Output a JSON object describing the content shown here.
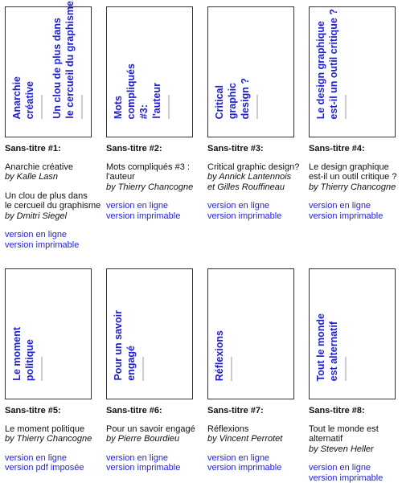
{
  "items": [
    {
      "cover": [
        [
          "Anarchie",
          "créative"
        ],
        [
          "Un clou de plus dans",
          "le cercueil du graphisme"
        ]
      ],
      "label": "Sans-titre #1:",
      "works": [
        {
          "lines": [
            "Anarchie créative"
          ],
          "author": "by Kalle Lasn"
        },
        {
          "lines": [
            "Un clou de plus dans",
            "le cercueil du graphisme"
          ],
          "author": "by Dmitri Siegel"
        }
      ],
      "links": [
        "version en ligne",
        "version imprimable"
      ]
    },
    {
      "cover": [
        [
          "Mots",
          "compliqués",
          "#3:",
          "l'auteur"
        ]
      ],
      "label": "Sans-titre #2:",
      "works": [
        {
          "lines": [
            "Mots compliqués #3 :",
            "l'auteur"
          ],
          "author": "by Thierry Chancogne"
        }
      ],
      "links": [
        "version en ligne",
        "version imprimable"
      ]
    },
    {
      "cover": [
        [
          "Critical",
          "graphic",
          "design ?"
        ]
      ],
      "label": "Sans-titre #3:",
      "works": [
        {
          "lines": [
            "Critical graphic design?"
          ],
          "author": "by Annick Lantennois",
          "author2": "et Gilles Rouffineau"
        }
      ],
      "links": [
        "version en ligne",
        "version imprimable"
      ]
    },
    {
      "cover": [
        [
          "Le design graphique",
          "est-il un outil critique ?"
        ]
      ],
      "label": "Sans-titre #4:",
      "works": [
        {
          "lines": [
            "Le design graphique",
            "est-il un outil critique ?"
          ],
          "author": "by Thierry Chancogne"
        }
      ],
      "links": [
        "version en ligne",
        "version imprimable"
      ]
    },
    {
      "cover": [
        [
          "Le moment",
          "politique"
        ]
      ],
      "label": "Sans-titre #5:",
      "works": [
        {
          "lines": [
            "Le moment politique"
          ],
          "author": "by Thierry Chancogne"
        }
      ],
      "links": [
        "version en ligne",
        "version pdf imposée"
      ]
    },
    {
      "cover": [
        [
          "Pour un savoir",
          "engagé"
        ]
      ],
      "label": "Sans-titre #6:",
      "works": [
        {
          "lines": [
            "Pour un savoir engagé"
          ],
          "author": "by Pierre Bourdieu"
        }
      ],
      "links": [
        "version en ligne",
        "version imprimable"
      ]
    },
    {
      "cover": [
        [
          "Réflexions"
        ]
      ],
      "label": "Sans-titre #7:",
      "works": [
        {
          "lines": [
            "Réflexions"
          ],
          "author": "by Vincent Perrotet"
        }
      ],
      "links": [
        "version en ligne",
        "version imprimable"
      ]
    },
    {
      "cover": [
        [
          "Tout le monde",
          "est alternatif"
        ]
      ],
      "label": "Sans-titre #8:",
      "works": [
        {
          "lines": [
            "Tout le monde est alternatif"
          ],
          "author": "by Steven Heller"
        }
      ],
      "links": [
        "version en ligne",
        "version imprimable"
      ]
    }
  ]
}
